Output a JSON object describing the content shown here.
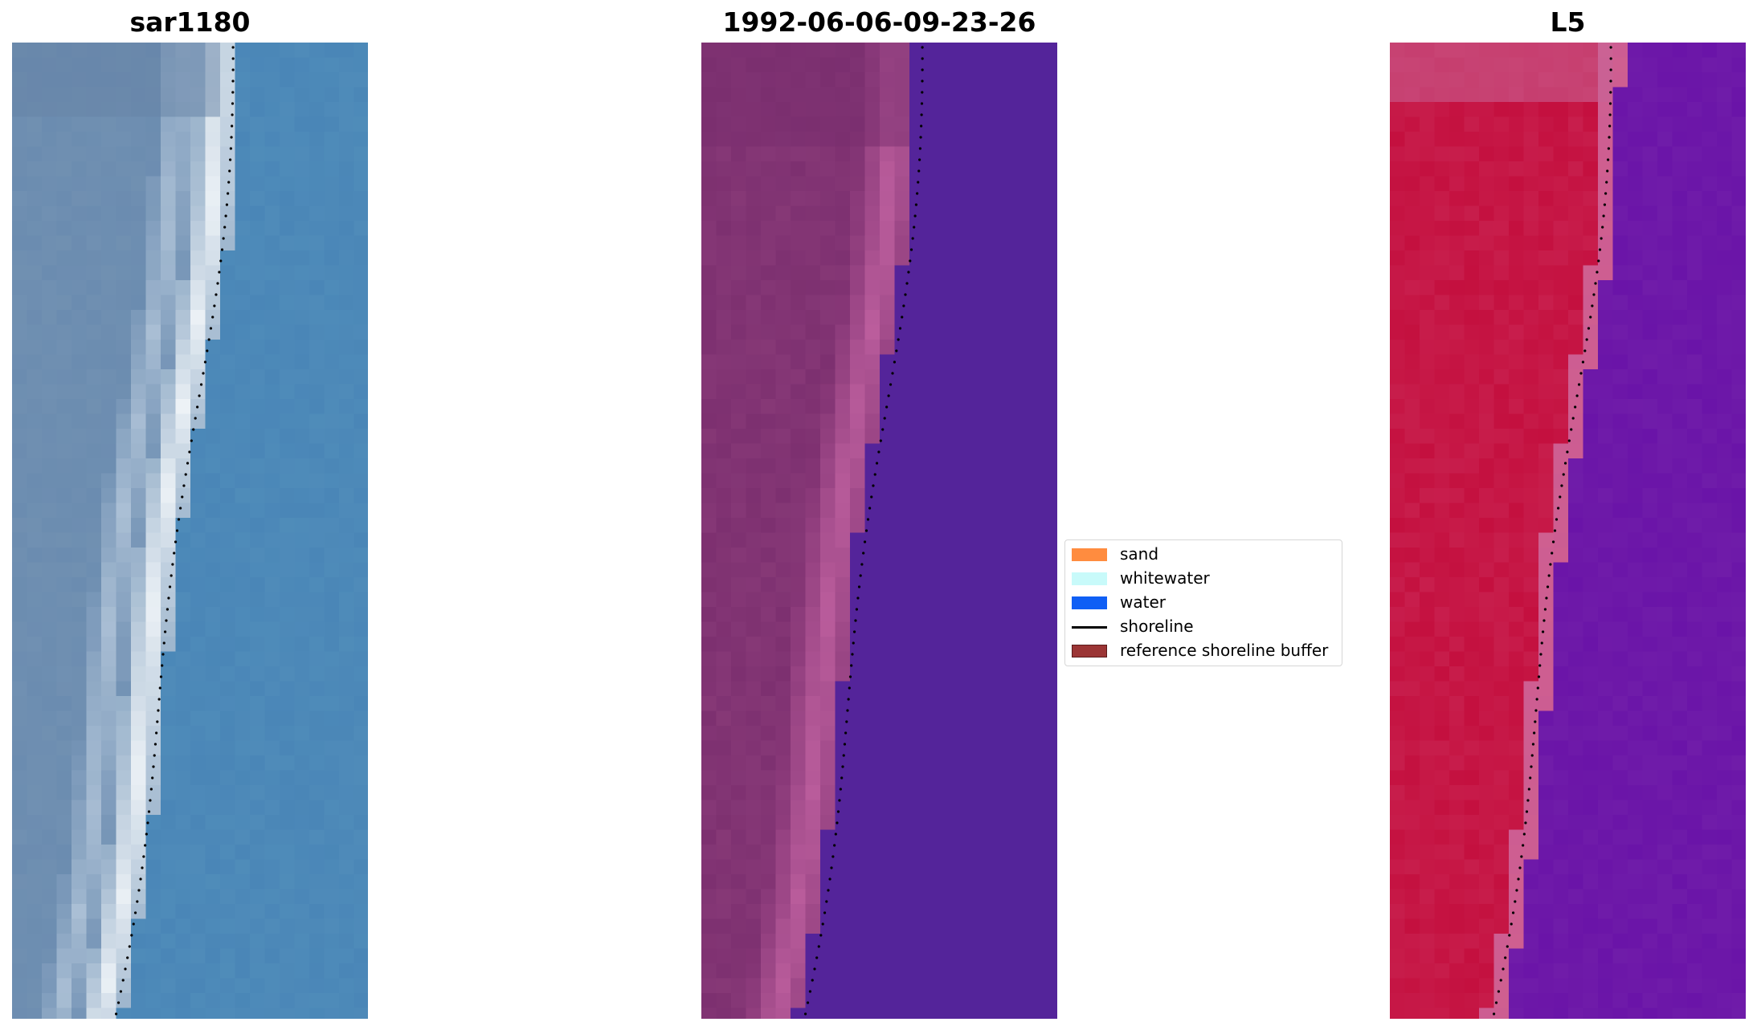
{
  "panels": [
    {
      "title": "sar1180",
      "style": "rgb"
    },
    {
      "title": "1992-06-06-09-23-26",
      "style": "classified"
    },
    {
      "title": "L5",
      "style": "index"
    }
  ],
  "legend": {
    "items": [
      {
        "label": "sand",
        "kind": "patch",
        "color": "#ff8c3f"
      },
      {
        "label": "whitewater",
        "kind": "patch",
        "color": "#c8fafa"
      },
      {
        "label": "water",
        "kind": "patch",
        "color": "#0f5ff5"
      },
      {
        "label": "shoreline",
        "kind": "line",
        "color": "#000000"
      },
      {
        "label": "reference shoreline buffer",
        "kind": "patch",
        "color": "#9b3535",
        "border": "#5a1a1a"
      }
    ]
  },
  "colors": {
    "rgb_water": "#4a86b7",
    "rgb_land": "#6b8cb0",
    "rgb_surf": "#eef3f7",
    "class_water": "#54249a",
    "class_land": "#7d3070",
    "class_beach": "#c061a0",
    "index_land": "#c4103f",
    "index_water": "#6a14a8",
    "index_band": "#cf5f90",
    "shoreline_dots": "#000000"
  }
}
